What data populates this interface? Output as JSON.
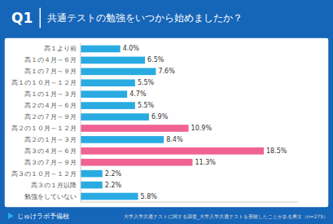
{
  "chart_data": {
    "type": "bar",
    "orientation": "horizontal",
    "title": "Q1",
    "subtitle": "共通テストの勉強をいつから始めましたか？",
    "categories": [
      "高１より前",
      "高１の４月～６月",
      "高１の７月～９月",
      "高１の１０月～１２月",
      "高１の１月～３月",
      "高２の４月～６月",
      "高２の７月～９月",
      "高２の１０月～１２月",
      "高２の１月～３月",
      "高３の４月～６月",
      "高３の７月～９月",
      "高３の１０月～１２月",
      "高３の１月以降",
      "勉強をしていない"
    ],
    "values": [
      4.0,
      6.5,
      7.6,
      5.5,
      4.7,
      5.5,
      6.9,
      10.9,
      8.4,
      18.5,
      11.3,
      2.2,
      2.2,
      5.8
    ],
    "value_labels": [
      "4.0%",
      "6.5%",
      "7.6%",
      "5.5%",
      "4.7%",
      "5.5%",
      "6.9%",
      "10.9%",
      "8.4%",
      "18.5%",
      "11.3%",
      "2.2%",
      "2.2%",
      "5.8%"
    ],
    "colors": [
      "#29abe2",
      "#29abe2",
      "#29abe2",
      "#29abe2",
      "#29abe2",
      "#29abe2",
      "#29abe2",
      "#f06292",
      "#29abe2",
      "#f06292",
      "#f06292",
      "#29abe2",
      "#29abe2",
      "#29abe2"
    ],
    "xlim": [
      0,
      22.0
    ],
    "data_labels": true,
    "tick_labels": "y",
    "grid": false,
    "annotations": [
      "じゅけラボ予備校",
      "大学入学共通テストに関する調査_大学入学共通テストを受験したことがある男女（n=275）"
    ]
  }
}
